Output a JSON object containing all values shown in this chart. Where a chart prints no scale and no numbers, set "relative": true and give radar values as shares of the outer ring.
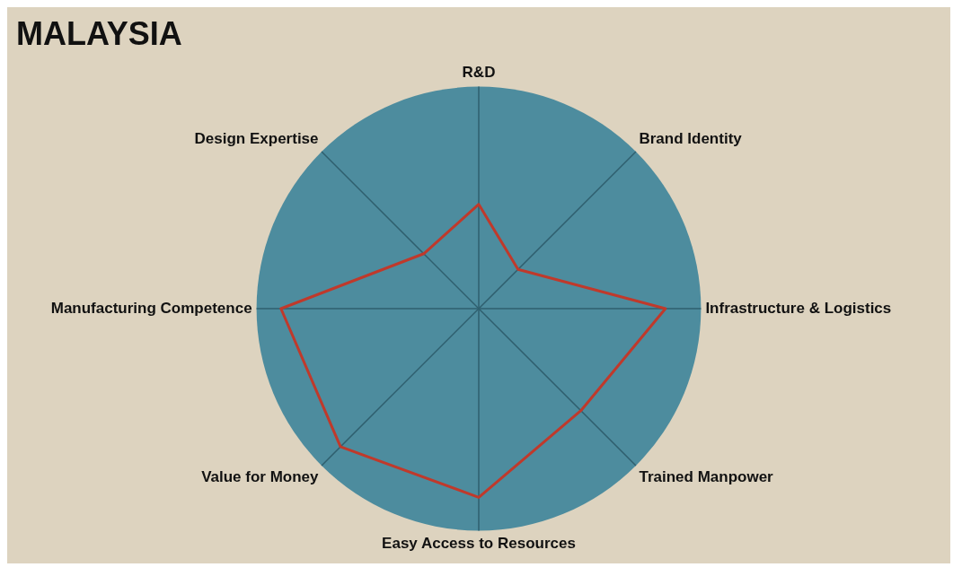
{
  "chart_data": {
    "type": "radar",
    "title": "MALAYSIA",
    "relative": true,
    "marker": "none",
    "line_style": "solid",
    "categories": [
      "R&D",
      "Brand Identity",
      "Infrastructure & Logistics",
      "Trained Manpower",
      "Easy Access to Resources",
      "Value for Money",
      "Manufacturing Competence",
      "Design Expertise"
    ],
    "series": [
      {
        "color": "#c0392b",
        "values": [
          0.47,
          0.25,
          0.84,
          0.65,
          0.85,
          0.88,
          0.89,
          0.35
        ]
      }
    ]
  }
}
